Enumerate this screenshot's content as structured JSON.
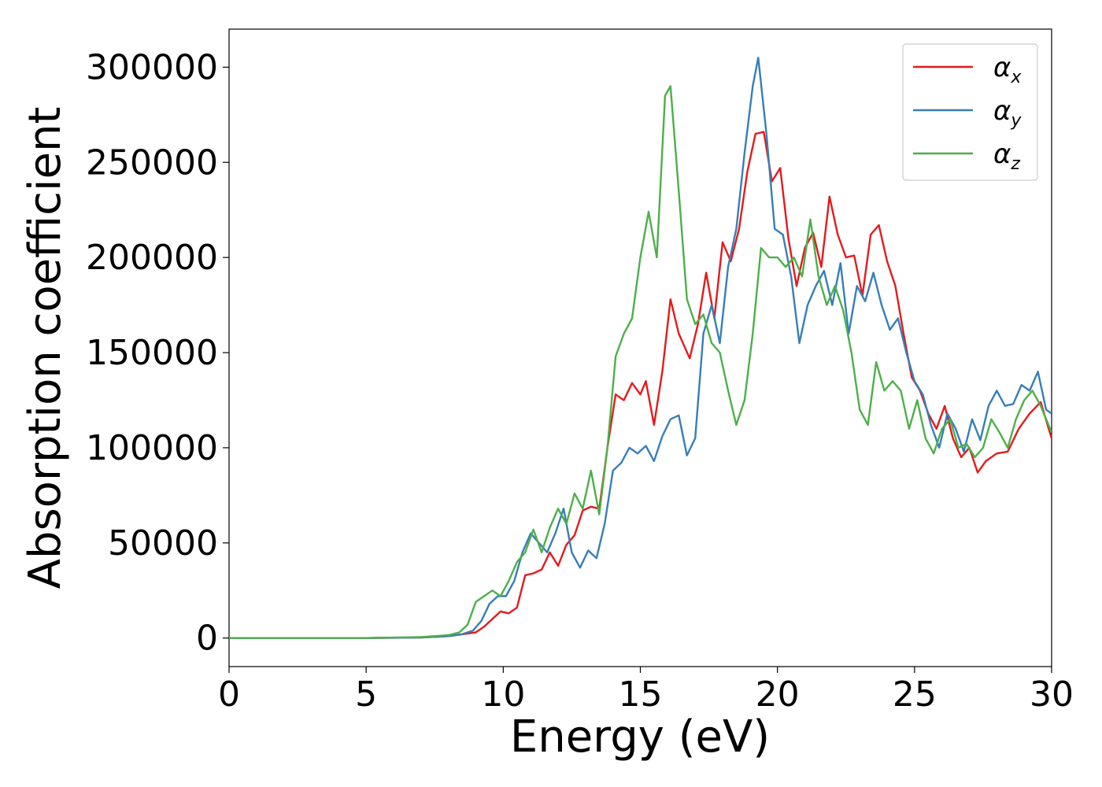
{
  "chart_data": {
    "type": "line",
    "title": "",
    "xlabel": "Energy (eV)",
    "ylabel": "Absorption coefficient",
    "xlim": [
      0,
      30
    ],
    "ylim": [
      -15000,
      320000
    ],
    "xticks": [
      0,
      5,
      10,
      15,
      20,
      25,
      30
    ],
    "yticks": [
      0,
      50000,
      100000,
      150000,
      200000,
      250000,
      300000
    ],
    "grid": false,
    "legend_position": "top-right",
    "series": [
      {
        "name": "α_x",
        "label_base": "α",
        "label_sub": "x",
        "color": "#e41a1c",
        "points": [
          [
            0,
            0
          ],
          [
            5,
            0
          ],
          [
            7,
            300
          ],
          [
            8,
            1000
          ],
          [
            8.5,
            2000
          ],
          [
            9,
            3000
          ],
          [
            9.3,
            6000
          ],
          [
            9.6,
            10000
          ],
          [
            9.9,
            14000
          ],
          [
            10.2,
            13000
          ],
          [
            10.5,
            16000
          ],
          [
            10.8,
            33000
          ],
          [
            11.1,
            34000
          ],
          [
            11.4,
            36000
          ],
          [
            11.7,
            45000
          ],
          [
            12,
            38000
          ],
          [
            12.3,
            49000
          ],
          [
            12.6,
            54000
          ],
          [
            12.9,
            67000
          ],
          [
            13.2,
            69000
          ],
          [
            13.5,
            68000
          ],
          [
            13.8,
            100000
          ],
          [
            14.1,
            128000
          ],
          [
            14.4,
            125000
          ],
          [
            14.7,
            134000
          ],
          [
            15,
            128000
          ],
          [
            15.2,
            135000
          ],
          [
            15.5,
            112000
          ],
          [
            15.8,
            140000
          ],
          [
            16.1,
            178000
          ],
          [
            16.4,
            160000
          ],
          [
            16.8,
            147000
          ],
          [
            17.1,
            165000
          ],
          [
            17.4,
            192000
          ],
          [
            17.7,
            168000
          ],
          [
            18,
            208000
          ],
          [
            18.3,
            198000
          ],
          [
            18.6,
            215000
          ],
          [
            18.9,
            245000
          ],
          [
            19.2,
            265000
          ],
          [
            19.5,
            266000
          ],
          [
            19.8,
            240000
          ],
          [
            20.1,
            247000
          ],
          [
            20.4,
            210000
          ],
          [
            20.7,
            185000
          ],
          [
            21,
            205000
          ],
          [
            21.3,
            213000
          ],
          [
            21.6,
            195000
          ],
          [
            21.9,
            232000
          ],
          [
            22.2,
            212000
          ],
          [
            22.5,
            200000
          ],
          [
            22.8,
            201000
          ],
          [
            23.1,
            180000
          ],
          [
            23.4,
            212000
          ],
          [
            23.7,
            217000
          ],
          [
            24,
            198000
          ],
          [
            24.3,
            185000
          ],
          [
            24.6,
            160000
          ],
          [
            24.9,
            137000
          ],
          [
            25.2,
            130000
          ],
          [
            25.5,
            118000
          ],
          [
            25.8,
            110000
          ],
          [
            26.1,
            122000
          ],
          [
            26.4,
            105000
          ],
          [
            26.7,
            95000
          ],
          [
            27,
            100000
          ],
          [
            27.3,
            87000
          ],
          [
            27.6,
            93000
          ],
          [
            28,
            97000
          ],
          [
            28.4,
            98000
          ],
          [
            28.8,
            110000
          ],
          [
            29.2,
            118000
          ],
          [
            29.6,
            124000
          ],
          [
            30,
            105000
          ]
        ]
      },
      {
        "name": "α_y",
        "label_base": "α",
        "label_sub": "y",
        "color": "#377eb8",
        "points": [
          [
            0,
            0
          ],
          [
            5,
            0
          ],
          [
            7,
            300
          ],
          [
            8,
            1000
          ],
          [
            8.5,
            2000
          ],
          [
            8.9,
            4000
          ],
          [
            9.2,
            9000
          ],
          [
            9.5,
            18000
          ],
          [
            9.8,
            22000
          ],
          [
            10.1,
            22000
          ],
          [
            10.4,
            30000
          ],
          [
            10.7,
            45000
          ],
          [
            11,
            55000
          ],
          [
            11.3,
            50000
          ],
          [
            11.6,
            45000
          ],
          [
            11.9,
            55000
          ],
          [
            12.2,
            68000
          ],
          [
            12.5,
            45000
          ],
          [
            12.8,
            37000
          ],
          [
            13.1,
            46000
          ],
          [
            13.4,
            42000
          ],
          [
            13.7,
            60000
          ],
          [
            14,
            88000
          ],
          [
            14.3,
            92000
          ],
          [
            14.6,
            100000
          ],
          [
            14.9,
            97000
          ],
          [
            15.2,
            101000
          ],
          [
            15.5,
            93000
          ],
          [
            15.8,
            106000
          ],
          [
            16.1,
            115000
          ],
          [
            16.4,
            117000
          ],
          [
            16.7,
            96000
          ],
          [
            17,
            105000
          ],
          [
            17.3,
            160000
          ],
          [
            17.6,
            175000
          ],
          [
            17.9,
            155000
          ],
          [
            18.2,
            195000
          ],
          [
            18.5,
            215000
          ],
          [
            18.8,
            255000
          ],
          [
            19.1,
            290000
          ],
          [
            19.3,
            305000
          ],
          [
            19.6,
            265000
          ],
          [
            19.9,
            215000
          ],
          [
            20.2,
            212000
          ],
          [
            20.5,
            190000
          ],
          [
            20.8,
            155000
          ],
          [
            21.1,
            175000
          ],
          [
            21.4,
            185000
          ],
          [
            21.7,
            193000
          ],
          [
            22,
            175000
          ],
          [
            22.3,
            197000
          ],
          [
            22.6,
            160000
          ],
          [
            22.9,
            185000
          ],
          [
            23.2,
            177000
          ],
          [
            23.5,
            192000
          ],
          [
            23.8,
            175000
          ],
          [
            24.1,
            162000
          ],
          [
            24.4,
            168000
          ],
          [
            24.7,
            150000
          ],
          [
            25,
            135000
          ],
          [
            25.3,
            128000
          ],
          [
            25.6,
            112000
          ],
          [
            25.9,
            100000
          ],
          [
            26.2,
            118000
          ],
          [
            26.5,
            110000
          ],
          [
            26.8,
            98000
          ],
          [
            27.1,
            115000
          ],
          [
            27.4,
            104000
          ],
          [
            27.7,
            122000
          ],
          [
            28,
            130000
          ],
          [
            28.3,
            122000
          ],
          [
            28.6,
            123000
          ],
          [
            28.9,
            133000
          ],
          [
            29.2,
            130000
          ],
          [
            29.5,
            140000
          ],
          [
            29.8,
            120000
          ],
          [
            30,
            118000
          ]
        ]
      },
      {
        "name": "α_z",
        "label_base": "α",
        "label_sub": "z",
        "color": "#4daf4a",
        "points": [
          [
            0,
            0
          ],
          [
            5,
            0
          ],
          [
            7,
            500
          ],
          [
            8,
            1500
          ],
          [
            8.4,
            3000
          ],
          [
            8.7,
            7000
          ],
          [
            9,
            19000
          ],
          [
            9.3,
            22000
          ],
          [
            9.6,
            25000
          ],
          [
            9.9,
            22000
          ],
          [
            10.2,
            30000
          ],
          [
            10.5,
            40000
          ],
          [
            10.8,
            45000
          ],
          [
            11.1,
            57000
          ],
          [
            11.4,
            45000
          ],
          [
            11.7,
            58000
          ],
          [
            12,
            68000
          ],
          [
            12.3,
            60000
          ],
          [
            12.6,
            76000
          ],
          [
            12.9,
            68000
          ],
          [
            13.2,
            88000
          ],
          [
            13.5,
            65000
          ],
          [
            13.8,
            100000
          ],
          [
            14.1,
            148000
          ],
          [
            14.4,
            160000
          ],
          [
            14.7,
            168000
          ],
          [
            15,
            200000
          ],
          [
            15.3,
            224000
          ],
          [
            15.6,
            200000
          ],
          [
            15.9,
            285000
          ],
          [
            16.1,
            290000
          ],
          [
            16.4,
            235000
          ],
          [
            16.7,
            178000
          ],
          [
            17,
            165000
          ],
          [
            17.3,
            170000
          ],
          [
            17.6,
            155000
          ],
          [
            17.9,
            150000
          ],
          [
            18.2,
            130000
          ],
          [
            18.5,
            112000
          ],
          [
            18.8,
            125000
          ],
          [
            19.1,
            160000
          ],
          [
            19.4,
            205000
          ],
          [
            19.7,
            200000
          ],
          [
            20,
            200000
          ],
          [
            20.3,
            195000
          ],
          [
            20.6,
            200000
          ],
          [
            20.9,
            190000
          ],
          [
            21.2,
            220000
          ],
          [
            21.5,
            190000
          ],
          [
            21.8,
            175000
          ],
          [
            22.1,
            185000
          ],
          [
            22.4,
            172000
          ],
          [
            22.7,
            150000
          ],
          [
            23,
            120000
          ],
          [
            23.3,
            112000
          ],
          [
            23.6,
            145000
          ],
          [
            23.9,
            130000
          ],
          [
            24.2,
            135000
          ],
          [
            24.5,
            130000
          ],
          [
            24.8,
            110000
          ],
          [
            25.1,
            125000
          ],
          [
            25.4,
            105000
          ],
          [
            25.7,
            97000
          ],
          [
            26,
            110000
          ],
          [
            26.3,
            115000
          ],
          [
            26.6,
            100000
          ],
          [
            26.9,
            102000
          ],
          [
            27.2,
            95000
          ],
          [
            27.5,
            100000
          ],
          [
            27.8,
            115000
          ],
          [
            28.1,
            108000
          ],
          [
            28.4,
            100000
          ],
          [
            28.7,
            115000
          ],
          [
            29,
            125000
          ],
          [
            29.3,
            130000
          ],
          [
            29.6,
            122000
          ],
          [
            30,
            108000
          ]
        ]
      }
    ]
  }
}
